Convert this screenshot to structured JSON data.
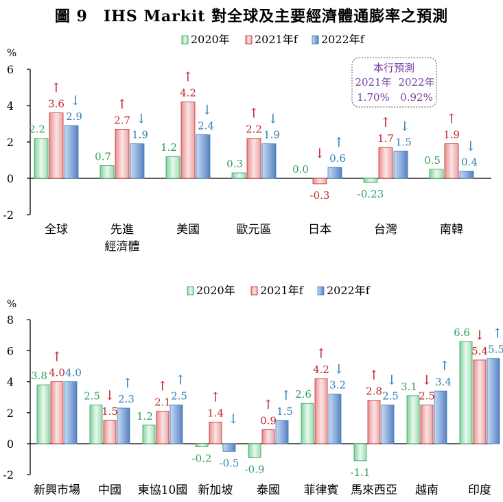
{
  "title": "圖 9　IHS Markit  對全球及主要經濟體通膨率之預測",
  "colors": {
    "s2020": "#2e9e5b",
    "s2021": "#c0272d",
    "s2022": "#2e7fb5",
    "note": "#7b3fa0"
  },
  "note": {
    "heading": "本行預測",
    "col1_label": "2021年",
    "col2_label": "2022年",
    "col1_value": "1.70%",
    "col2_value": "0.92%"
  },
  "chart_data": [
    {
      "type": "bar",
      "ylabel": "%",
      "ylim": [
        -2,
        6
      ],
      "yticks": [
        -2,
        0,
        2,
        4,
        6
      ],
      "legend": [
        "2020年",
        "2021年f",
        "2022年f"
      ],
      "categories": [
        "全球",
        "先進\n經濟體",
        "美國",
        "歐元區",
        "日本",
        "台灣",
        "南韓"
      ],
      "series": [
        {
          "name": "2020年",
          "values": [
            2.2,
            0.7,
            1.2,
            0.3,
            0.0,
            -0.23,
            0.5
          ],
          "labels": [
            "2.2",
            "0.7",
            "1.2",
            "0.3",
            "0.0",
            "-0.23",
            "0.5"
          ]
        },
        {
          "name": "2021年f",
          "values": [
            3.6,
            2.7,
            4.2,
            2.2,
            -0.3,
            1.7,
            1.9
          ],
          "labels": [
            "3.6",
            "2.7",
            "4.2",
            "2.2",
            "-0.3",
            "1.7",
            "1.9"
          ],
          "arrows": [
            "up",
            "up",
            "up",
            "up",
            "down",
            "up",
            "up"
          ]
        },
        {
          "name": "2022年f",
          "values": [
            2.9,
            1.9,
            2.4,
            1.9,
            0.6,
            1.5,
            0.4
          ],
          "labels": [
            "2.9",
            "1.9",
            "2.4",
            "1.9",
            "0.6",
            "1.5",
            "0.4"
          ],
          "arrows": [
            "down",
            "down",
            "down",
            "down",
            "up",
            "down",
            "down"
          ]
        }
      ]
    },
    {
      "type": "bar",
      "ylabel": "%",
      "ylim": [
        -2,
        8
      ],
      "yticks": [
        -2,
        0,
        2,
        4,
        6,
        8
      ],
      "legend": [
        "2020年",
        "2021年f",
        "2022年f"
      ],
      "categories": [
        "新興市場",
        "中國",
        "東協10國",
        "新加坡",
        "泰國",
        "菲律賓",
        "馬來西亞",
        "越南",
        "印度"
      ],
      "series": [
        {
          "name": "2020年",
          "values": [
            3.8,
            2.5,
            1.2,
            -0.2,
            -0.9,
            2.6,
            -1.1,
            3.1,
            6.6
          ],
          "labels": [
            "3.8",
            "2.5",
            "1.2",
            "-0.2",
            "-0.9",
            "2.6",
            "-1.1",
            "3.1",
            "6.6"
          ]
        },
        {
          "name": "2021年f",
          "values": [
            4.0,
            1.5,
            2.1,
            1.4,
            0.9,
            4.2,
            2.8,
            2.5,
            5.4
          ],
          "labels": [
            "4.0",
            "1.5",
            "2.1",
            "1.4",
            "0.9",
            "4.2",
            "2.8",
            "2.5",
            "5.4"
          ],
          "arrows": [
            "up",
            "down",
            "up",
            "up",
            "up",
            "up",
            "up",
            "down",
            "down"
          ]
        },
        {
          "name": "2022年f",
          "values": [
            4.0,
            2.3,
            2.5,
            -0.5,
            1.5,
            3.2,
            2.5,
            3.4,
            5.5
          ],
          "labels": [
            "4.0",
            "2.3",
            "2.5",
            "-0.5",
            "1.5",
            "3.2",
            "2.5",
            "3.4",
            "5.5"
          ],
          "arrows": [
            "none",
            "up",
            "up",
            "down",
            "up",
            "down",
            "down",
            "up",
            "up"
          ]
        }
      ]
    }
  ]
}
